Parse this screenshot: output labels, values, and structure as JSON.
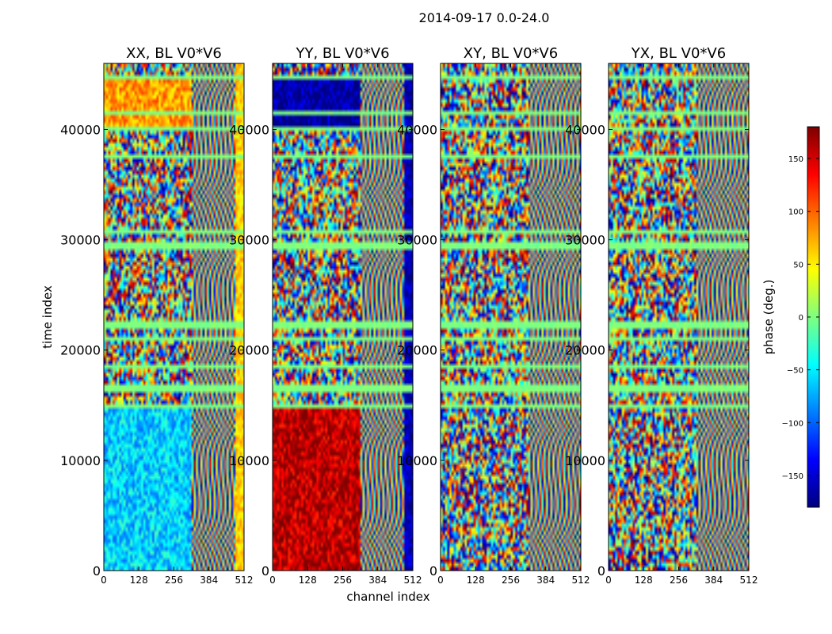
{
  "chart_data": {
    "type": "heatmap",
    "suptitle": "2014-09-17 0.0-24.0",
    "xlabel": "channel index",
    "ylabel": "time index",
    "xlim": [
      0,
      512
    ],
    "ylim": [
      0,
      46000
    ],
    "x_ticks": [
      "0",
      "128",
      "256",
      "384",
      "512"
    ],
    "y_ticks": [
      "0",
      "10000",
      "20000",
      "30000",
      "40000"
    ],
    "x_tick_values": [
      0,
      128,
      256,
      384,
      512
    ],
    "y_tick_values": [
      0,
      10000,
      20000,
      30000,
      40000
    ],
    "panels": [
      {
        "title": "XX, BL V0*V6",
        "low_band_mean_phase": -60,
        "high_band_mean_phase": 60
      },
      {
        "title": "YY, BL V0*V6",
        "low_band_mean_phase": 160,
        "high_band_mean_phase": -160
      },
      {
        "title": "XY, BL V0*V6",
        "low_band_mean_phase": null,
        "high_band_mean_phase": null
      },
      {
        "title": "YX, BL V0*V6",
        "low_band_mean_phase": null,
        "high_band_mean_phase": null
      }
    ],
    "colorbar": {
      "label": "phase (deg.)",
      "range": [
        -180,
        180
      ],
      "ticks": [
        "−150",
        "−100",
        "−50",
        "0",
        "50",
        "100",
        "150"
      ],
      "tick_values": [
        -150,
        -100,
        -50,
        0,
        50,
        100,
        150
      ],
      "colormap": "jet"
    },
    "flagged_time_ranges": [
      [
        14600,
        15100
      ],
      [
        16300,
        16900
      ],
      [
        18200,
        18600
      ],
      [
        20800,
        21200
      ],
      [
        22000,
        22500
      ],
      [
        29200,
        29800
      ],
      [
        30700,
        31000
      ],
      [
        37300,
        37600
      ],
      [
        39800,
        40200
      ],
      [
        41200,
        41600
      ],
      [
        44500,
        45000
      ]
    ]
  }
}
